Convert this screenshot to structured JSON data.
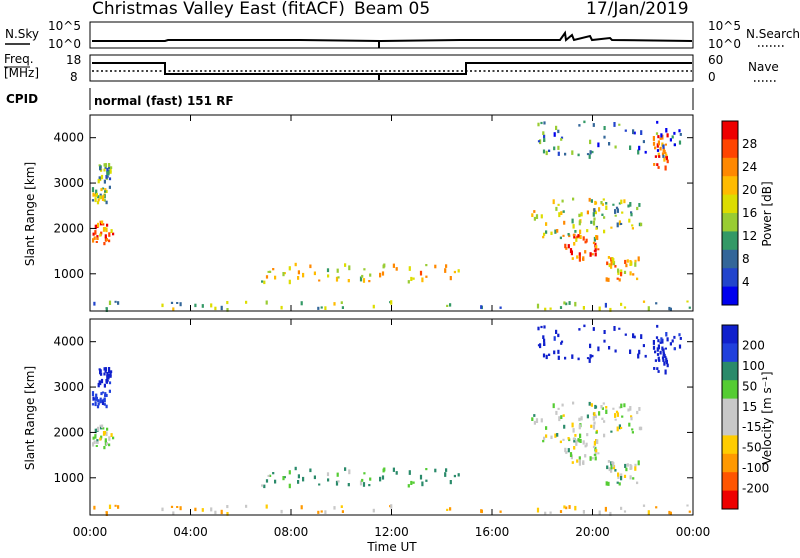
{
  "header": {
    "title": "Christmas Valley East (fitACF)",
    "beam": "Beam 05",
    "date": "17/Jan/2019"
  },
  "noise_panel": {
    "left_label": "N.Sky",
    "right_label": "N.Search",
    "y_ticks": [
      "10^5",
      "10^0"
    ],
    "right_ticks": [
      "10^5",
      "10^0"
    ]
  },
  "freq_panel": {
    "left_label_line1": "Freq.",
    "left_label_line2": "[MHz]",
    "y_ticks": [
      "18",
      "8"
    ],
    "right_label": "Nave",
    "right_ticks": [
      "60",
      "0"
    ]
  },
  "cpid": {
    "label": "CPID",
    "value": "normal (fast) 151 RF"
  },
  "x_axis": {
    "title": "Time UT",
    "ticks": [
      "00:00",
      "04:00",
      "08:00",
      "12:00",
      "16:00",
      "20:00",
      "00:00"
    ]
  },
  "power_panel": {
    "ylabel": "Slant Range [km]",
    "cbar_label": "Power [dB]",
    "cbar_ticks": [
      "28",
      "24",
      "20",
      "16",
      "12",
      "8",
      "4"
    ],
    "cbar_colors": [
      "#ee0000",
      "#ff4400",
      "#ff8800",
      "#ffbb00",
      "#dddd00",
      "#99cc33",
      "#339966",
      "#336699",
      "#2244cc",
      "#0000ee"
    ]
  },
  "velocity_panel": {
    "ylabel": "Slant Range [km]",
    "cbar_label": "Velocity [m s⁻¹]",
    "cbar_ticks": [
      "200",
      "100",
      "50",
      "15",
      "-15",
      "-50",
      "-100",
      "-200"
    ],
    "cbar_colors": [
      "#1020cc",
      "#2040dd",
      "#2a8a6a",
      "#55cc33",
      "#c8c8c8",
      "#c8c8c8",
      "#ffcc00",
      "#ff9900",
      "#ff5500",
      "#ee0000"
    ]
  },
  "chart_data": {
    "type": "heatmap",
    "x_range_hours": [
      0,
      24
    ],
    "y_range_km": [
      180,
      4500
    ],
    "y_ticks_km": [
      1000,
      2000,
      3000,
      4000
    ],
    "power_db_range": [
      0,
      30
    ],
    "velocity_range_ms": [
      -250,
      250
    ],
    "echo_regions": [
      {
        "t0": 0.0,
        "t1": 0.9,
        "r0": 1650,
        "r1": 2200,
        "power": 24,
        "velocity": 10
      },
      {
        "t0": 0.0,
        "t1": 0.8,
        "r0": 2600,
        "r1": 2950,
        "power": 14,
        "velocity": 120
      },
      {
        "t0": 0.3,
        "t1": 0.8,
        "r0": 3050,
        "r1": 3450,
        "power": 10,
        "velocity": 180
      },
      {
        "t0": 0.0,
        "t1": 24.0,
        "r0": 180,
        "r1": 420,
        "power": 12,
        "velocity": -30
      },
      {
        "t0": 6.8,
        "t1": 15.0,
        "r0": 850,
        "r1": 1250,
        "power": 18,
        "velocity": 40
      },
      {
        "t0": 17.5,
        "t1": 20.5,
        "r0": 1800,
        "r1": 2700,
        "power": 16,
        "velocity": 5
      },
      {
        "t0": 18.8,
        "t1": 20.3,
        "r0": 1300,
        "r1": 1900,
        "power": 26,
        "velocity": 5
      },
      {
        "t0": 20.0,
        "t1": 22.0,
        "r0": 2000,
        "r1": 2700,
        "power": 14,
        "velocity": 8
      },
      {
        "t0": 20.5,
        "t1": 21.8,
        "r0": 850,
        "r1": 1400,
        "power": 20,
        "velocity": 10
      },
      {
        "t0": 22.4,
        "t1": 23.0,
        "r0": 3300,
        "r1": 4100,
        "power": 25,
        "velocity": 220
      },
      {
        "t0": 17.8,
        "t1": 23.5,
        "r0": 3600,
        "r1": 4400,
        "power": 8,
        "velocity": 180
      }
    ],
    "frequency_steps": [
      {
        "t0": 0.0,
        "t1": 3.0,
        "value": "high"
      },
      {
        "t0": 3.0,
        "t1": 15.0,
        "value": "low"
      },
      {
        "t0": 15.0,
        "t1": 24.0,
        "value": "high"
      }
    ]
  }
}
